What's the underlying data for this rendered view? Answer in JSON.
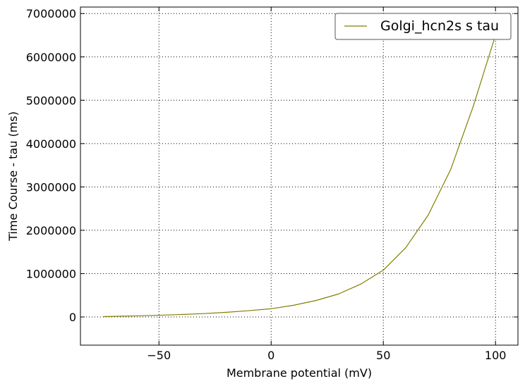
{
  "chart_data": {
    "type": "line",
    "title": "",
    "xlabel": "Membrane potential (mV)",
    "ylabel": "Time Course - tau (ms)",
    "xlim": [
      -85,
      110
    ],
    "ylim": [
      -650000,
      7150000
    ],
    "x_ticks": [
      -50,
      0,
      50,
      100
    ],
    "x_tick_labels": [
      "−50",
      "0",
      "50",
      "100"
    ],
    "y_ticks": [
      0,
      1000000,
      2000000,
      3000000,
      4000000,
      5000000,
      6000000,
      7000000
    ],
    "y_tick_labels": [
      "0",
      "1000000",
      "2000000",
      "3000000",
      "4000000",
      "5000000",
      "6000000",
      "7000000"
    ],
    "grid": true,
    "legend_position": "top-right",
    "series": [
      {
        "name": "Golgi_hcn2s s tau",
        "color": "#808000",
        "x": [
          -75,
          -70,
          -60,
          -50,
          -40,
          -30,
          -20,
          -10,
          0,
          10,
          20,
          30,
          40,
          50,
          60,
          70,
          80,
          90,
          100
        ],
        "y": [
          8000,
          14000,
          25000,
          40000,
          57000,
          78000,
          108000,
          145000,
          190000,
          270000,
          380000,
          530000,
          760000,
          1080000,
          1600000,
          2350000,
          3400000,
          4850000,
          6500000
        ]
      }
    ]
  }
}
